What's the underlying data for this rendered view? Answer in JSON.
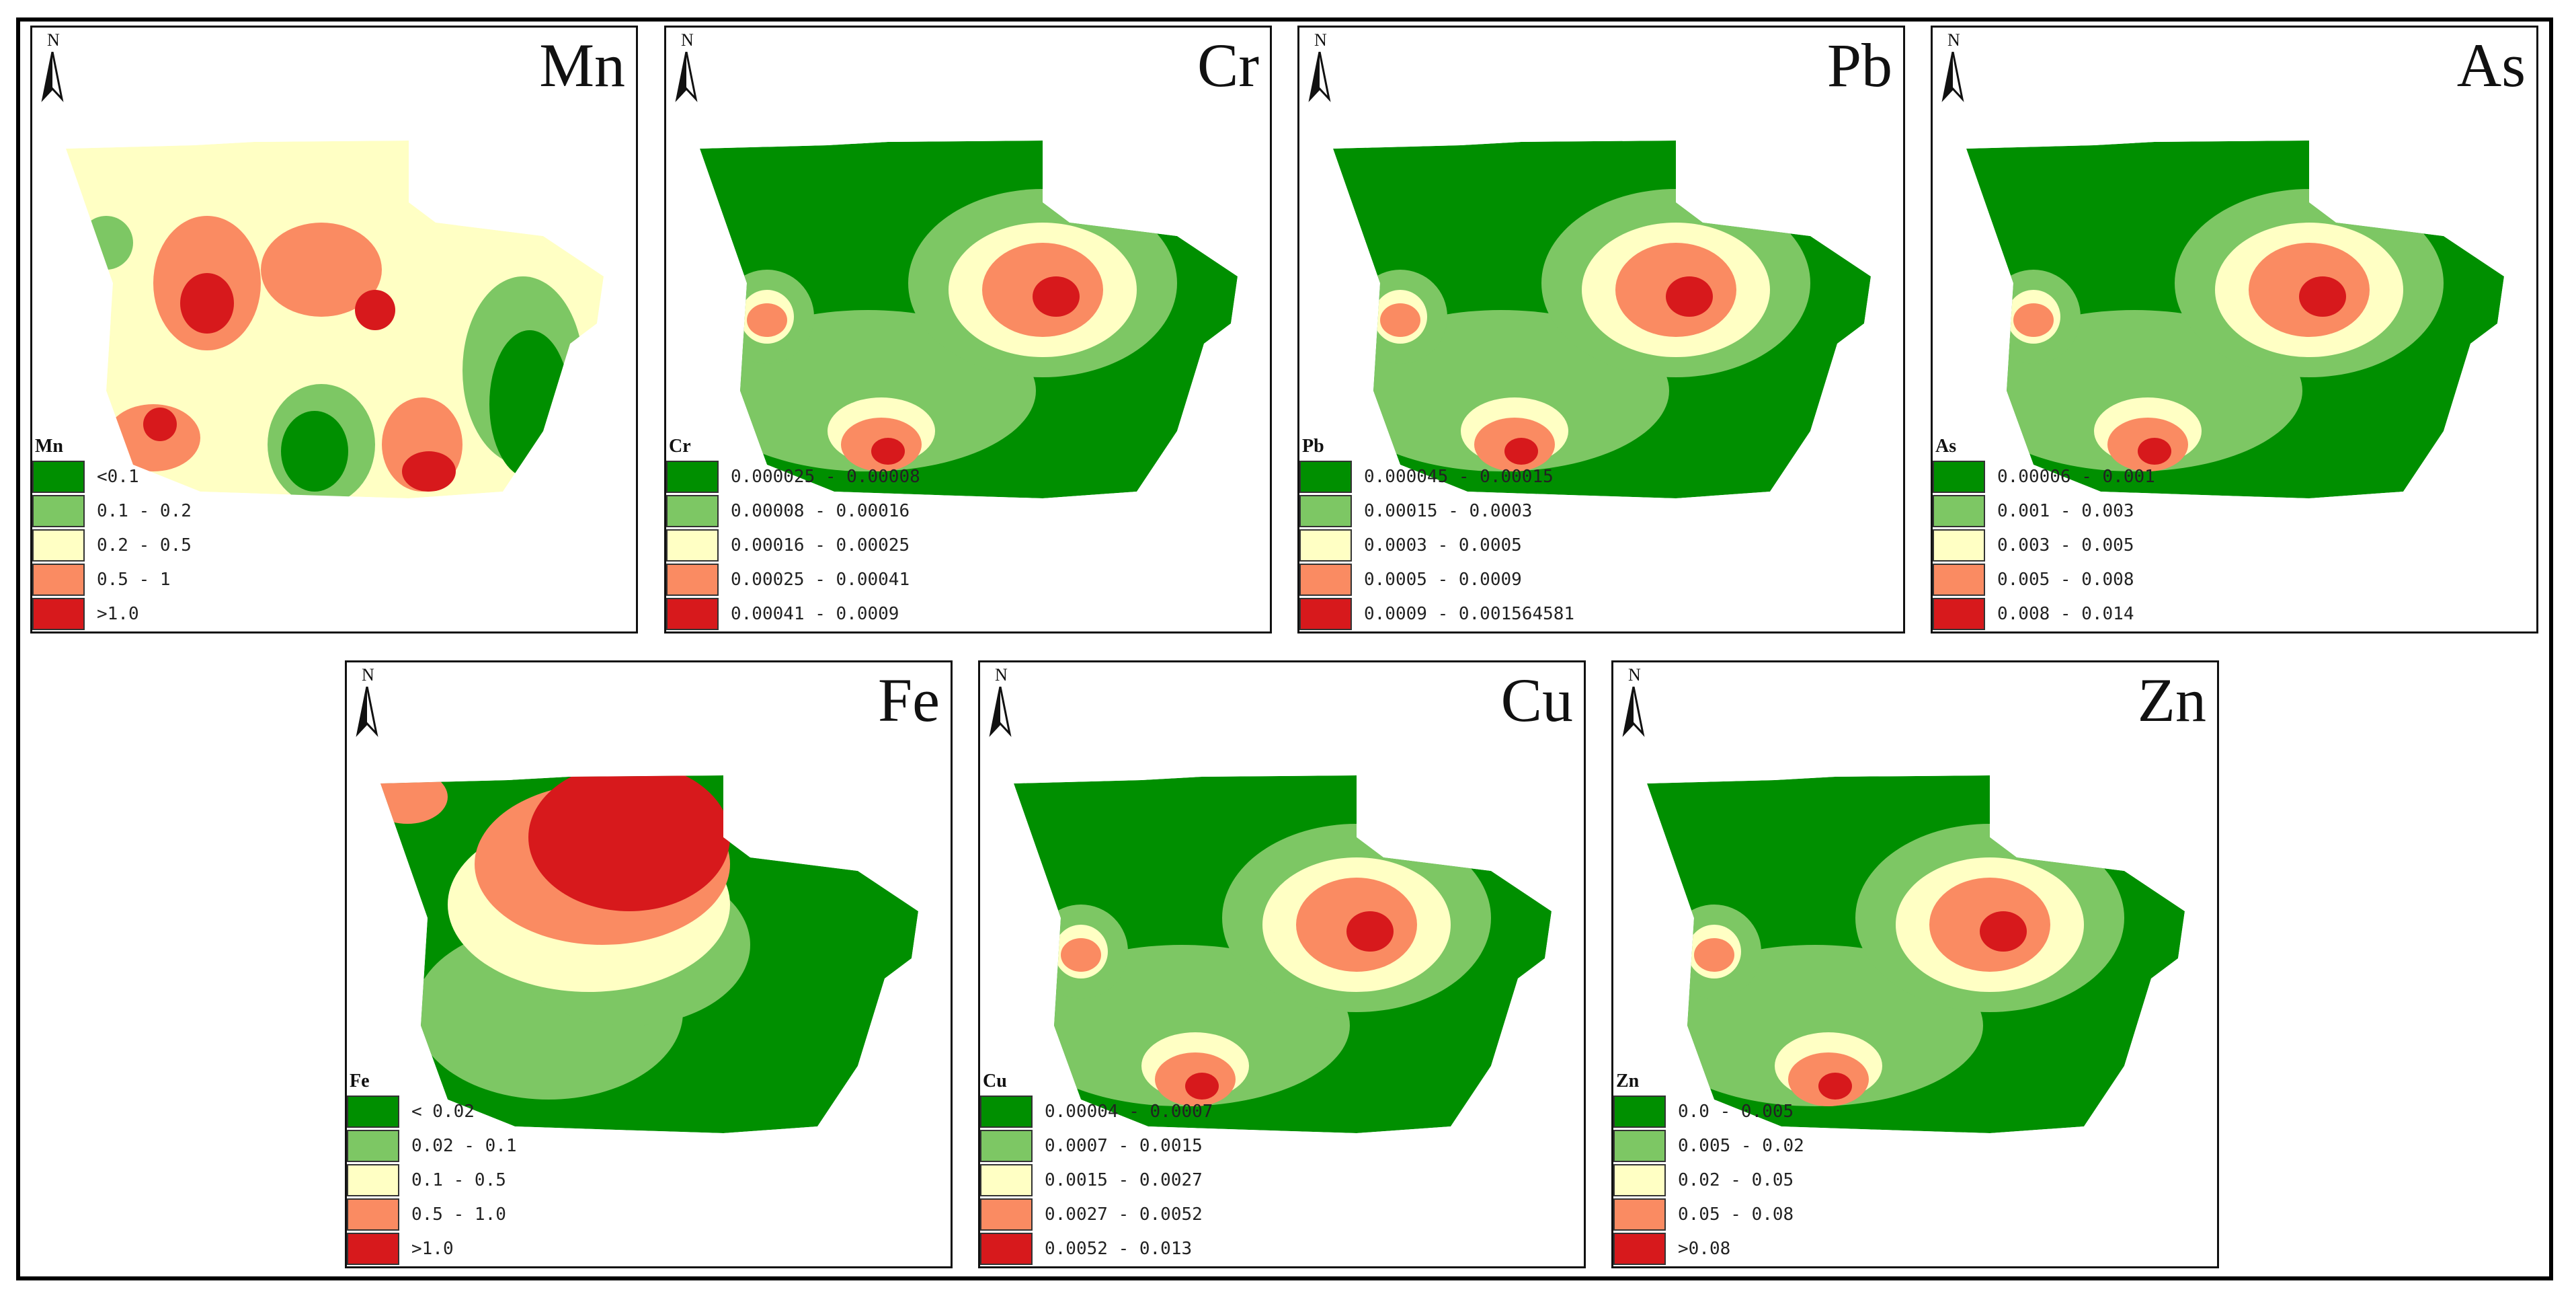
{
  "colors": [
    "#008f00",
    "#7dc764",
    "#ffffc4",
    "#fa8b62",
    "#d7191c"
  ],
  "panels": [
    {
      "title": "Mn",
      "legend_title": "Mn",
      "hot": "mid",
      "classes": [
        "<0.1",
        "0.1 - 0.2",
        "0.2 - 0.5",
        "0.5 - 1",
        ">1.0"
      ]
    },
    {
      "title": "Cr",
      "legend_title": "Cr",
      "hot": "low",
      "classes": [
        "0.000025 - 0.00008",
        "0.00008 - 0.00016",
        "0.00016 - 0.00025",
        "0.00025 - 0.00041",
        "0.00041 - 0.0009"
      ]
    },
    {
      "title": "Pb",
      "legend_title": "Pb",
      "hot": "low",
      "classes": [
        "0.000045 - 0.00015",
        "0.00015 - 0.0003",
        "0.0003 - 0.0005",
        "0.0005 - 0.0009",
        "0.0009 - 0.001564581"
      ]
    },
    {
      "title": "As",
      "legend_title": "As",
      "hot": "low",
      "classes": [
        "0.00006 - 0.001",
        "0.001 - 0.003",
        "0.003 - 0.005",
        "0.005 - 0.008",
        "0.008 - 0.014"
      ]
    },
    {
      "title": "Fe",
      "legend_title": "Fe",
      "hot": "high",
      "classes": [
        "< 0.02",
        "0.02 - 0.1",
        "0.1 - 0.5",
        "0.5 - 1.0",
        ">1.0"
      ]
    },
    {
      "title": "Cu",
      "legend_title": "Cu",
      "hot": "low",
      "classes": [
        "0.00004 - 0.0007",
        "0.0007 - 0.0015",
        "0.0015 - 0.0027",
        "0.0027 - 0.0052",
        "0.0052 - 0.013"
      ]
    },
    {
      "title": "Zn",
      "legend_title": "Zn",
      "hot": "low",
      "classes": [
        "0.0 - 0.005",
        "0.005 - 0.02",
        "0.02 - 0.05",
        "0.05 - 0.08",
        ">0.08"
      ]
    }
  ],
  "north_label": "N"
}
